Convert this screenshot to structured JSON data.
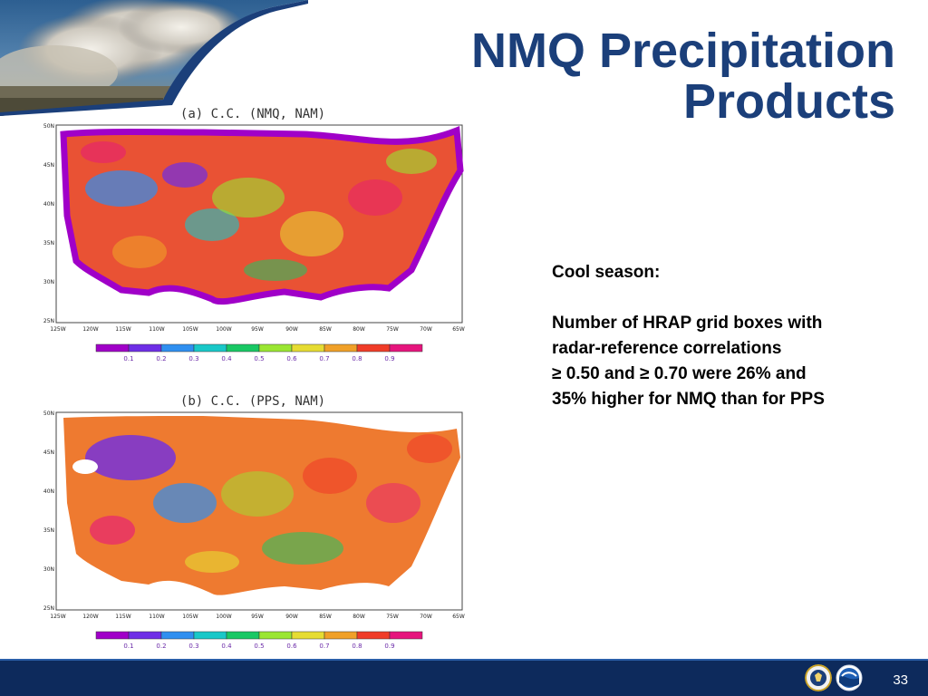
{
  "slide": {
    "title_line1": "NMQ Precipitation",
    "title_line2": "Products",
    "page_number": "33"
  },
  "panels": [
    {
      "title": "(a) C.C. (NMQ, NAM)",
      "lat_labels": [
        "50N",
        "45N",
        "40N",
        "35N",
        "30N",
        "25N"
      ],
      "lon_labels": [
        "125W",
        "120W",
        "115W",
        "110W",
        "105W",
        "100W",
        "95W",
        "90W",
        "85W",
        "80W",
        "75W",
        "70W",
        "65W"
      ],
      "colorbar_labels": [
        "0.1",
        "0.2",
        "0.3",
        "0.4",
        "0.5",
        "0.6",
        "0.7",
        "0.8",
        "0.9"
      ]
    },
    {
      "title": "(b) C.C. (PPS, NAM)",
      "lat_labels": [
        "50N",
        "45N",
        "40N",
        "35N",
        "30N",
        "25N"
      ],
      "lon_labels": [
        "125W",
        "120W",
        "115W",
        "110W",
        "105W",
        "100W",
        "95W",
        "90W",
        "85W",
        "80W",
        "75W",
        "70W",
        "65W"
      ],
      "colorbar_labels": [
        "0.1",
        "0.2",
        "0.3",
        "0.4",
        "0.5",
        "0.6",
        "0.7",
        "0.8",
        "0.9"
      ]
    }
  ],
  "colorbar_colors": [
    "#a000c8",
    "#6e2ee6",
    "#2f8ff0",
    "#19c8c8",
    "#19c864",
    "#9ae632",
    "#e6dc32",
    "#f0a028",
    "#f03c28",
    "#e6147d"
  ],
  "body_text": {
    "heading": "Cool season:",
    "line1": "Number of HRAP grid boxes with",
    "line2": "radar-reference correlations",
    "line3": "≥ 0.50 and ≥ 0.70 were 26% and",
    "line4": "35% higher for NMQ than for PPS"
  },
  "footer": {
    "logos": [
      "department-of-commerce-seal-icon",
      "noaa-logo-icon"
    ]
  },
  "colors": {
    "title": "#1b3f7a",
    "footer_bar": "#0d2a5c"
  }
}
